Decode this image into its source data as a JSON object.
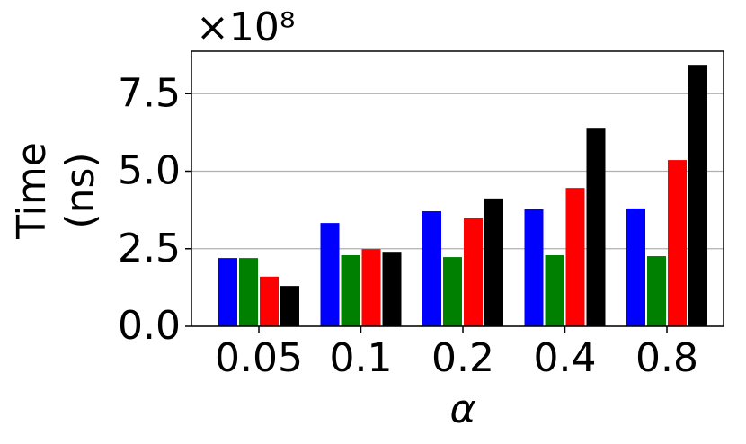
{
  "chart_data": {
    "type": "bar",
    "offset_text": "×10⁸",
    "ylabel": [
      "Time",
      "(ns)"
    ],
    "xlabel": "α",
    "categories": [
      "0.05",
      "0.1",
      "0.2",
      "0.4",
      "0.8"
    ],
    "series": [
      {
        "color": "#0000ff",
        "values": [
          2.2,
          3.33,
          3.71,
          3.77,
          3.8
        ]
      },
      {
        "color": "#008000",
        "values": [
          2.2,
          2.29,
          2.23,
          2.29,
          2.26
        ]
      },
      {
        "color": "#ff0000",
        "values": [
          1.6,
          2.49,
          3.48,
          4.46,
          5.36
        ]
      },
      {
        "color": "#000000",
        "values": [
          1.3,
          2.4,
          4.12,
          6.4,
          8.43
        ]
      }
    ],
    "ylim": [
      0,
      8.87
    ],
    "yticks": [
      {
        "value": 0,
        "label": "0.0"
      },
      2.5,
      {
        "value": 5,
        "label": "5.0"
      },
      7.5
    ],
    "grid": true
  }
}
